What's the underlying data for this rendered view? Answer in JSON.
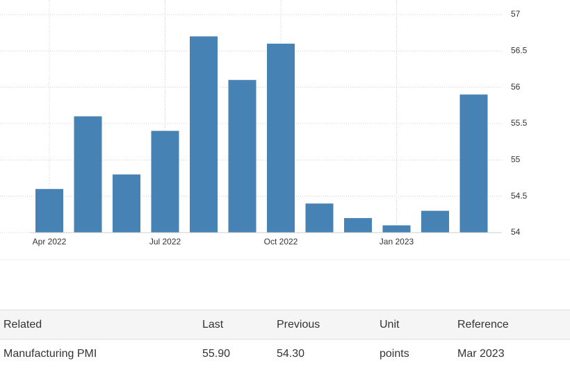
{
  "chart_data": {
    "type": "bar",
    "categories": [
      "Apr 2022",
      null,
      null,
      "Jul 2022",
      null,
      null,
      "Oct 2022",
      null,
      null,
      "Jan 2023",
      null,
      null
    ],
    "values": [
      54.6,
      55.6,
      54.8,
      55.4,
      56.7,
      56.1,
      56.6,
      54.4,
      54.2,
      54.1,
      54.3,
      55.9
    ],
    "color": "#4682b4",
    "ylim": [
      54,
      57
    ],
    "yticks": [
      54,
      54.5,
      55,
      55.5,
      56,
      56.5,
      57
    ],
    "grid": true
  },
  "table": {
    "header": [
      "Related",
      "Last",
      "Previous",
      "Unit",
      "Reference"
    ],
    "rows": [
      [
        "Manufacturing PMI",
        "55.90",
        "54.30",
        "points",
        "Mar 2023"
      ]
    ]
  }
}
